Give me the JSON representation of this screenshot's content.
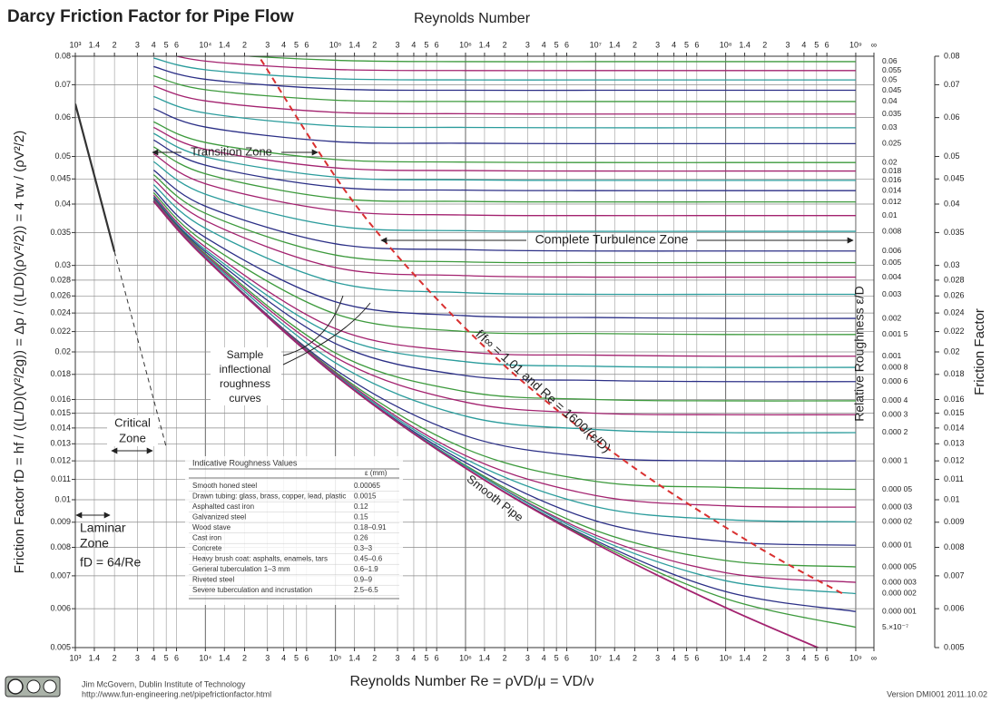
{
  "chart_data": {
    "type": "line",
    "title": "Darcy Friction Factor for Pipe Flow",
    "x_label_top": "Reynolds Number",
    "x_label": "Reynolds Number  Re = ρVD/μ = VD/ν",
    "y_label": "Friction Factor  fD = hf / ((L/D)(V²/2g)) = Δp / ((L/D)(ρV²/2)) = 4 τw / (ρV²/2)",
    "y2_label": "Friction Factor",
    "roughness_label": "Relative Roughness  ε/D",
    "log_x": true,
    "log_y": true,
    "grid": true,
    "xlim": [
      1000,
      1380000000
    ],
    "ylim": [
      0.005,
      0.08
    ],
    "xticks": [
      {
        "value": 1000,
        "label": "10³"
      },
      {
        "value": 1400,
        "label": "1.4"
      },
      {
        "value": 2000,
        "label": "2"
      },
      {
        "value": 3000,
        "label": "3"
      },
      {
        "value": 4000,
        "label": "4"
      },
      {
        "value": 5000,
        "label": "5"
      },
      {
        "value": 6000,
        "label": "6"
      },
      {
        "value": 10000,
        "label": "10⁴"
      },
      {
        "value": 14000,
        "label": "1.4"
      },
      {
        "value": 20000,
        "label": "2"
      },
      {
        "value": 30000,
        "label": "3"
      },
      {
        "value": 40000,
        "label": "4"
      },
      {
        "value": 50000,
        "label": "5"
      },
      {
        "value": 60000,
        "label": "6"
      },
      {
        "value": 100000,
        "label": "10⁵"
      },
      {
        "value": 140000,
        "label": "1.4"
      },
      {
        "value": 200000,
        "label": "2"
      },
      {
        "value": 300000,
        "label": "3"
      },
      {
        "value": 400000,
        "label": "4"
      },
      {
        "value": 500000,
        "label": "5"
      },
      {
        "value": 600000,
        "label": "6"
      },
      {
        "value": 1000000,
        "label": "10⁶"
      },
      {
        "value": 1400000,
        "label": "1.4"
      },
      {
        "value": 2000000,
        "label": "2"
      },
      {
        "value": 3000000,
        "label": "3"
      },
      {
        "value": 4000000,
        "label": "4"
      },
      {
        "value": 5000000,
        "label": "5"
      },
      {
        "value": 6000000,
        "label": "6"
      },
      {
        "value": 10000000,
        "label": "10⁷"
      },
      {
        "value": 14000000,
        "label": "1.4"
      },
      {
        "value": 20000000,
        "label": "2"
      },
      {
        "value": 30000000,
        "label": "3"
      },
      {
        "value": 40000000,
        "label": "4"
      },
      {
        "value": 50000000,
        "label": "5"
      },
      {
        "value": 60000000,
        "label": "6"
      },
      {
        "value": 100000000,
        "label": "10⁸"
      },
      {
        "value": 140000000,
        "label": "1.4"
      },
      {
        "value": 200000000,
        "label": "2"
      },
      {
        "value": 300000000,
        "label": "3"
      },
      {
        "value": 400000000,
        "label": "4"
      },
      {
        "value": 500000000,
        "label": "5"
      },
      {
        "value": 600000000,
        "label": "6"
      },
      {
        "value": 1000000000,
        "label": "10⁹"
      },
      {
        "value": 1380000000,
        "label": "∞"
      }
    ],
    "yticks": [
      0.08,
      0.07,
      0.06,
      0.05,
      0.045,
      0.04,
      0.035,
      0.03,
      0.028,
      0.026,
      0.024,
      0.022,
      0.02,
      0.018,
      0.016,
      0.015,
      0.014,
      0.013,
      0.012,
      0.011,
      0.01,
      0.009,
      0.008,
      0.007,
      0.006,
      0.005
    ],
    "x": [
      4000,
      10000,
      100000,
      1000000,
      10000000,
      100000000,
      1000000000
    ],
    "series": [
      {
        "name": "0.06",
        "color": "#3d9a3d",
        "values": [
          0.0855,
          0.0813,
          0.0785,
          0.078,
          0.078,
          0.078,
          0.078
        ]
      },
      {
        "name": "0.055",
        "color": "#a3226f",
        "values": [
          0.0825,
          0.0782,
          0.0752,
          0.0748,
          0.0748,
          0.0748,
          0.0748
        ]
      },
      {
        "name": "0.05",
        "color": "#2b9c9c",
        "values": [
          0.0793,
          0.0751,
          0.072,
          0.0716,
          0.0716,
          0.0716,
          0.0716
        ]
      },
      {
        "name": "0.045",
        "color": "#2b2f86",
        "values": [
          0.0762,
          0.0718,
          0.0686,
          0.0682,
          0.0682,
          0.0682,
          0.0682
        ]
      },
      {
        "name": "0.04",
        "color": "#3d9a3d",
        "values": [
          0.073,
          0.0684,
          0.0651,
          0.0647,
          0.0647,
          0.0647,
          0.0647
        ]
      },
      {
        "name": "0.035",
        "color": "#a3226f",
        "values": [
          0.0696,
          0.0649,
          0.0615,
          0.0611,
          0.061,
          0.061,
          0.061
        ]
      },
      {
        "name": "0.03",
        "color": "#2b9c9c",
        "values": [
          0.0662,
          0.0613,
          0.0577,
          0.0573,
          0.0572,
          0.0572,
          0.0572
        ]
      },
      {
        "name": "0.025",
        "color": "#2b2f86",
        "values": [
          0.0626,
          0.0574,
          0.0536,
          0.0532,
          0.0531,
          0.0531,
          0.0531
        ]
      },
      {
        "name": "0.02",
        "color": "#3d9a3d",
        "values": [
          0.0588,
          0.0534,
          0.0493,
          0.0487,
          0.0486,
          0.0486,
          0.0486
        ]
      },
      {
        "name": "0.018",
        "color": "#a3226f",
        "values": [
          0.0573,
          0.0517,
          0.0474,
          0.0468,
          0.0467,
          0.0467,
          0.0467
        ]
      },
      {
        "name": "0.016",
        "color": "#2b9c9c",
        "values": [
          0.0557,
          0.0499,
          0.0454,
          0.0448,
          0.0447,
          0.0447,
          0.0447
        ]
      },
      {
        "name": "0.014",
        "color": "#2b2f86",
        "values": [
          0.054,
          0.048,
          0.0433,
          0.0427,
          0.0426,
          0.0426,
          0.0426
        ]
      },
      {
        "name": "0.012",
        "color": "#3d9a3d",
        "values": [
          0.0523,
          0.0461,
          0.0411,
          0.0405,
          0.0404,
          0.0404,
          0.0404
        ]
      },
      {
        "name": "0.01",
        "color": "#a3226f",
        "values": [
          0.0506,
          0.044,
          0.0388,
          0.038,
          0.0379,
          0.0379,
          0.0379
        ]
      },
      {
        "name": "0.008",
        "color": "#2b9c9c",
        "values": [
          0.0488,
          0.0419,
          0.0361,
          0.0353,
          0.0352,
          0.0352,
          0.0352
        ]
      },
      {
        "name": "0.006",
        "color": "#2b2f86",
        "values": [
          0.0469,
          0.0396,
          0.0332,
          0.0323,
          0.0321,
          0.0321,
          0.0321
        ]
      },
      {
        "name": "0.005",
        "color": "#3d9a3d",
        "values": [
          0.0459,
          0.0383,
          0.0315,
          0.0305,
          0.0304,
          0.0304,
          0.0304
        ]
      },
      {
        "name": "0.004",
        "color": "#a3226f",
        "values": [
          0.0449,
          0.037,
          0.0297,
          0.0286,
          0.0284,
          0.0284,
          0.0284
        ]
      },
      {
        "name": "0.003",
        "color": "#2b9c9c",
        "values": [
          0.0438,
          0.0357,
          0.0277,
          0.0264,
          0.0262,
          0.0262,
          0.0262
        ]
      },
      {
        "name": "0.002",
        "color": "#2b2f86",
        "values": [
          0.0428,
          0.0342,
          0.0253,
          0.0237,
          0.0235,
          0.0234,
          0.0234
        ]
      },
      {
        "name": "0.001 5",
        "color": "#3d9a3d",
        "values": [
          0.0422,
          0.0334,
          0.0239,
          0.022,
          0.0218,
          0.0217,
          0.0217
        ]
      },
      {
        "name": "0.001",
        "color": "#a3226f",
        "values": [
          0.0417,
          0.0327,
          0.0223,
          0.02,
          0.0197,
          0.0196,
          0.0196
        ]
      },
      {
        "name": "0.000 8",
        "color": "#2b9c9c",
        "values": [
          0.0414,
          0.0323,
          0.0216,
          0.0191,
          0.0187,
          0.0186,
          0.0186
        ]
      },
      {
        "name": "0.000 6",
        "color": "#2b2f86",
        "values": [
          0.0412,
          0.032,
          0.0208,
          0.0179,
          0.0175,
          0.0174,
          0.0174
        ]
      },
      {
        "name": "0.000 4",
        "color": "#3d9a3d",
        "values": [
          0.041,
          0.0317,
          0.0199,
          0.0166,
          0.016,
          0.0159,
          0.0159
        ]
      },
      {
        "name": "0.000 3",
        "color": "#a3226f",
        "values": [
          0.0409,
          0.0315,
          0.0195,
          0.0158,
          0.015,
          0.0149,
          0.0149
        ]
      },
      {
        "name": "0.000 2",
        "color": "#2b9c9c",
        "values": [
          0.0407,
          0.0313,
          0.019,
          0.0148,
          0.0139,
          0.0137,
          0.0137
        ]
      },
      {
        "name": "0.000 1",
        "color": "#2b2f86",
        "values": [
          0.0406,
          0.0311,
          0.0184,
          0.0135,
          0.0122,
          0.012,
          0.012
        ]
      },
      {
        "name": "0.000 05",
        "color": "#3d9a3d",
        "values": [
          0.0406,
          0.0311,
          0.0182,
          0.0127,
          0.0109,
          0.0106,
          0.0105
        ]
      },
      {
        "name": "0.000 03",
        "color": "#a3226f",
        "values": [
          0.0405,
          0.0311,
          0.0181,
          0.0123,
          0.0102,
          0.00972,
          0.00966
        ]
      },
      {
        "name": "0.000 02",
        "color": "#2b9c9c",
        "values": [
          0.0405,
          0.0311,
          0.018,
          0.0121,
          0.00968,
          0.00911,
          0.00902
        ]
      },
      {
        "name": "0.000 01",
        "color": "#2b2f86",
        "values": [
          0.0405,
          0.031,
          0.0179,
          0.0119,
          0.00906,
          0.00822,
          0.00808
        ]
      },
      {
        "name": "0.000 005",
        "color": "#3d9a3d",
        "values": [
          0.0405,
          0.031,
          0.0179,
          0.01175,
          0.00866,
          0.00752,
          0.0073
        ]
      },
      {
        "name": "0.000 003",
        "color": "#a3226f",
        "values": [
          0.0405,
          0.031,
          0.0179,
          0.0117,
          0.00847,
          0.0071,
          0.00679
        ]
      },
      {
        "name": "0.000 002",
        "color": "#2b9c9c",
        "values": [
          0.0405,
          0.031,
          0.0179,
          0.0117,
          0.00837,
          0.00684,
          0.00644
        ]
      },
      {
        "name": "0.000 001",
        "color": "#2b2f86",
        "values": [
          0.0405,
          0.031,
          0.0179,
          0.0116,
          0.00826,
          0.0065,
          0.00592
        ]
      },
      {
        "name": "5.×10⁻⁷",
        "color": "#3d9a3d",
        "values": [
          0.0405,
          0.031,
          0.0179,
          0.0116,
          0.0082,
          0.00629,
          0.0055
        ]
      }
    ],
    "smooth": {
      "name": "Smooth Pipe",
      "color": "#a3226f",
      "values": [
        0.0405,
        0.031,
        0.0179,
        0.0116,
        0.00814,
        0.00603,
        0.00464
      ]
    },
    "laminar": {
      "color": "#333333",
      "x": [
        1000,
        2000,
        5000
      ],
      "values": [
        0.064,
        0.032,
        0.0128
      ]
    },
    "boundary": {
      "label": "f/f∞ = 1.01  and  Re = 1600/(ε/D)",
      "color": "#d93030",
      "x": [
        26667,
        160000,
        1600000,
        16000000,
        160000000,
        800000000
      ],
      "values": [
        0.0788,
        0.0383,
        0.0198,
        0.0121,
        0.00814,
        0.00643
      ]
    },
    "annotations": {
      "transition": "Transition Zone",
      "turbulence": "Complete Turbulence Zone",
      "critical": [
        "Critical",
        "Zone"
      ],
      "laminar": [
        "Laminar",
        "Zone",
        "fD = 64/Re"
      ],
      "sample": [
        "Sample",
        "inflectional",
        "roughness",
        "curves"
      ]
    },
    "table": {
      "title": "Indicative Roughness Values",
      "unit": "ε (mm)",
      "rows": [
        [
          "Smooth honed steel",
          "0.00065"
        ],
        [
          "Drawn tubing: glass, brass, copper, lead, plastic",
          "0.0015"
        ],
        [
          "Asphalted cast iron",
          "0.12"
        ],
        [
          "Galvanized steel",
          "0.15"
        ],
        [
          "Wood stave",
          "0.18–0.91"
        ],
        [
          "Cast iron",
          "0.26"
        ],
        [
          "Concrete",
          "0.3–3"
        ],
        [
          "Heavy brush coat: asphalts, enamels, tars",
          "0.45–0.6"
        ],
        [
          "General tuberculation 1–3 mm",
          "0.6–1.9"
        ],
        [
          "Riveted steel",
          "0.9–9"
        ],
        [
          "Severe tuberculation and incrustation",
          "2.5–6.5"
        ]
      ]
    },
    "footer": {
      "author": "Jim McGovern, Dublin Institute of Technology",
      "url": "http://www.fun-engineering.net/pipefrictionfactor.html",
      "version": "Version DMI001 2011.10.02"
    }
  }
}
